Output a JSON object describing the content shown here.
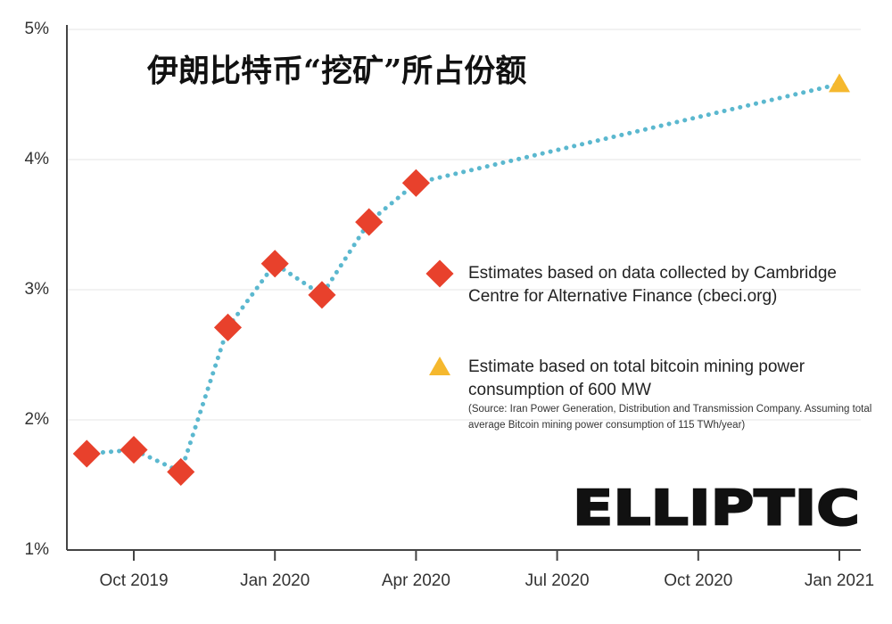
{
  "chart_data": {
    "type": "line",
    "title": "伊朗比特币“挖矿”所占份额",
    "logo": "ELLIPTIC",
    "series": [
      {
        "name": "Estimates based on data collected by Cambridge Centre for Alternative Finance (cbeci.org)",
        "color": "#e8412c",
        "marker": "diamond",
        "x": [
          "2019-09",
          "2019-10",
          "2019-11",
          "2019-12",
          "2020-01",
          "2020-02",
          "2020-03",
          "2020-04"
        ],
        "values": [
          1.74,
          1.77,
          1.6,
          2.71,
          3.2,
          2.96,
          3.52,
          3.82
        ]
      },
      {
        "name": "Estimate based on total bitcoin mining power consumption of 600 MW",
        "note": "(Source: Iran Power Generation, Distribution and Transmission Company. Assuming total average Bitcoin mining power consumption of 115 TWh/year)",
        "color": "#f5b82e",
        "marker": "triangle",
        "x": [
          "2021-01"
        ],
        "values": [
          4.58
        ]
      }
    ],
    "line_color": "#5bb8cf",
    "ylim": [
      1,
      5
    ],
    "yticks": [
      {
        "value": 1,
        "label": "1%"
      },
      {
        "value": 2,
        "label": "2%"
      },
      {
        "value": 3,
        "label": "3%"
      },
      {
        "value": 4,
        "label": "4%"
      },
      {
        "value": 5,
        "label": "5%"
      }
    ],
    "xticks": [
      {
        "value": "2019-10",
        "label": "Oct 2019"
      },
      {
        "value": "2020-01",
        "label": "Jan 2020"
      },
      {
        "value": "2020-04",
        "label": "Apr 2020"
      },
      {
        "value": "2020-07",
        "label": "Jul 2020"
      },
      {
        "value": "2020-10",
        "label": "Oct 2020"
      },
      {
        "value": "2021-01",
        "label": "Jan 2021"
      }
    ],
    "grid": true
  }
}
